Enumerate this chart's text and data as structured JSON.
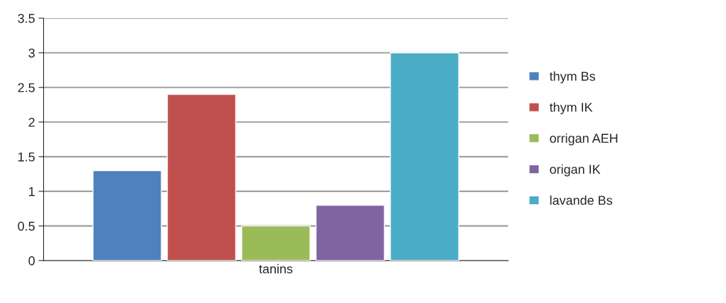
{
  "chart_data": {
    "type": "bar",
    "categories": [
      "tanins"
    ],
    "series": [
      {
        "name": "thym Bs",
        "color": "#4f81bd",
        "values": [
          1.3
        ]
      },
      {
        "name": "thym IK",
        "color": "#c0504d",
        "values": [
          2.4
        ]
      },
      {
        "name": "orrigan AEH",
        "color": "#9bbb59",
        "values": [
          0.5
        ]
      },
      {
        "name": "origan IK",
        "color": "#8064a2",
        "values": [
          0.8
        ]
      },
      {
        "name": "lavande Bs",
        "color": "#4bacc6",
        "values": [
          3.0
        ]
      }
    ],
    "ylim": [
      0,
      3.5
    ],
    "yticks": [
      0,
      0.5,
      1,
      1.5,
      2,
      2.5,
      3,
      3.5
    ],
    "grid": "y",
    "legend": "right"
  }
}
